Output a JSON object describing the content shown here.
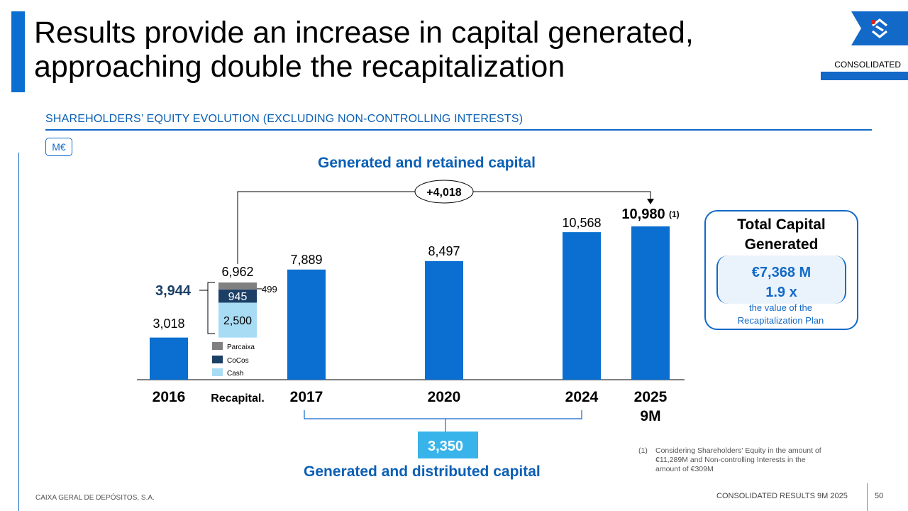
{
  "title_line1": "Results provide an increase in capital generated,",
  "title_line2": "approaching double the recapitalization",
  "badge": "CONSOLIDATED",
  "logo_icon": "cgd-logo-icon",
  "section_title": "SHAREHOLDERS’ EQUITY EVOLUTION (EXCLUDING NON-CONTROLLING INTERESTS)",
  "unit": "M€",
  "heading_retained": "Generated and retained capital",
  "heading_distributed": "Generated and distributed capital",
  "increase_label": "+4,018",
  "distributed_value": "3,350",
  "recap_total": "3,944",
  "footnote_num": "(1)",
  "footnote_text": "Considering Shareholders' Equity in the amount of €11,289M and Non-controlling Interests in the amount of €309M",
  "total_box": {
    "title_line1": "Total Capital",
    "title_line2": "Generated",
    "value1": "€7,368 M",
    "value2": "1.9 x",
    "note_line1": "the value of the",
    "note_line2": "Recapitalization Plan"
  },
  "footer_left": "CAIXA GERAL DE DEPÓSITOS, S.A.",
  "footer_right": "CONSOLIDATED RESULTS 9M 2025",
  "page_number": "50",
  "chart_data": {
    "type": "bar",
    "categories": [
      "2016",
      "Recapital.",
      "2017",
      "2020",
      "2024",
      "2025\n9M"
    ],
    "values": [
      3018,
      6962,
      7889,
      8497,
      10568,
      10980
    ],
    "value_labels": [
      "3,018",
      "6,962",
      "7,889",
      "8,497",
      "10,568",
      "10,980"
    ],
    "highlight_label_index": 5,
    "highlight_superscript": "(1)",
    "recap_stack": [
      {
        "name": "Cash",
        "value": 2500,
        "label": "2,500",
        "color": "#a8dcf5"
      },
      {
        "name": "CoCos",
        "value": 945,
        "label": "945",
        "color": "#1c3f66"
      },
      {
        "name": "Parcaixa",
        "value": 499,
        "label": "499",
        "color": "#808080"
      }
    ],
    "recap_base": 3018,
    "bar_color": "#0a6fd0",
    "legend": [
      "Parcaixa",
      "CoCos",
      "Cash"
    ],
    "legend_colors": [
      "#808080",
      "#1c3f66",
      "#a8dcf5"
    ],
    "legend_placement": "below-recap-bar",
    "ylim": [
      0,
      12000
    ],
    "grid": false
  }
}
